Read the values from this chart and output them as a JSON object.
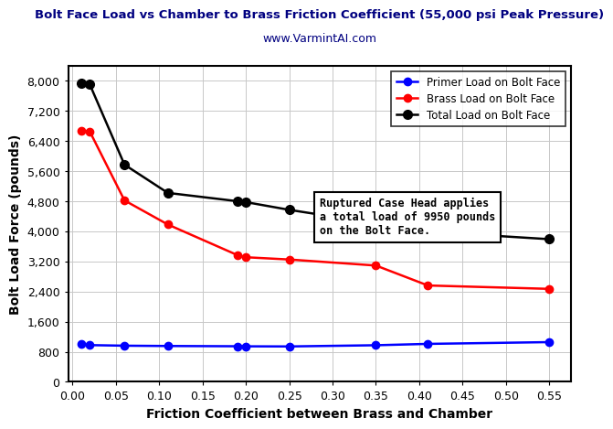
{
  "title": "Bolt Face Load vs Chamber to Brass Friction Coefficient (55,000 psi Peak Pressure)",
  "subtitle": "www.VarmintAI.com",
  "xlabel": "Friction Coefficient between Brass and Chamber",
  "ylabel": "Bolt Load Force (pounds)",
  "annotation": "Ruptured Case Head applies\na total load of 9950 pounds\non the Bolt Face.",
  "x": [
    0.01,
    0.02,
    0.06,
    0.11,
    0.19,
    0.2,
    0.25,
    0.35,
    0.41,
    0.55
  ],
  "primer_load": [
    1000,
    975,
    960,
    952,
    945,
    943,
    940,
    972,
    1008,
    1055
  ],
  "brass_load": [
    6680,
    6650,
    4820,
    4180,
    3370,
    3310,
    3250,
    3090,
    2560,
    2470
  ],
  "total_load": [
    7940,
    7900,
    5770,
    5020,
    4800,
    4775,
    4570,
    4210,
    3990,
    3790
  ],
  "primer_color": "#0000FF",
  "brass_color": "#FF0000",
  "total_color": "#000000",
  "ylim": [
    0,
    8400
  ],
  "xlim": [
    -0.005,
    0.575
  ],
  "yticks": [
    0,
    800,
    1600,
    2400,
    3200,
    4000,
    4800,
    5600,
    6400,
    7200,
    8000
  ],
  "xticks": [
    0,
    0.05,
    0.1,
    0.15,
    0.2,
    0.25,
    0.3,
    0.35,
    0.4,
    0.45,
    0.5,
    0.55
  ],
  "background_color": "#FFFFFF",
  "grid_color": "#C8C8C8",
  "title_color": "#000080",
  "subtitle_color": "#000080"
}
